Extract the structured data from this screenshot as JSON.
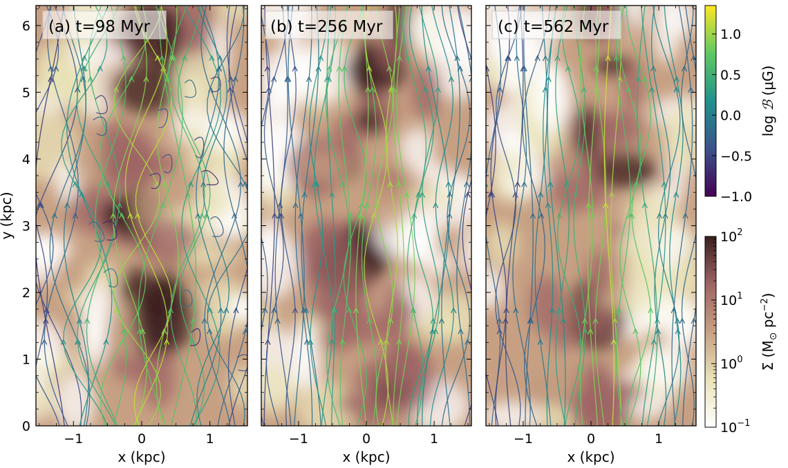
{
  "chart_data": [
    {
      "type": "heatmap",
      "title": "(a) t=98 Myr",
      "xlabel": "x (kpc)",
      "ylabel": "y (kpc)",
      "xlim": [
        -1.55,
        1.55
      ],
      "ylim": [
        0,
        6.3
      ],
      "xticks": [
        {
          "v": -1,
          "label": "−1"
        },
        {
          "v": 0,
          "label": "0"
        },
        {
          "v": 1,
          "label": "1"
        }
      ],
      "yticks": [
        {
          "v": 0,
          "label": "0"
        },
        {
          "v": 1,
          "label": "1"
        },
        {
          "v": 2,
          "label": "2"
        },
        {
          "v": 3,
          "label": "3"
        },
        {
          "v": 4,
          "label": "4"
        },
        {
          "v": 5,
          "label": "5"
        },
        {
          "v": 6,
          "label": "6"
        }
      ],
      "overlay": "magnetic field streamlines",
      "seed": 11
    },
    {
      "type": "heatmap",
      "title": "(b) t=256 Myr",
      "xlabel": "x (kpc)",
      "ylabel": "",
      "xlim": [
        -1.55,
        1.55
      ],
      "ylim": [
        0,
        6.3
      ],
      "xticks": [
        {
          "v": -1,
          "label": "−1"
        },
        {
          "v": 0,
          "label": "0"
        },
        {
          "v": 1,
          "label": "1"
        }
      ],
      "overlay": "magnetic field streamlines",
      "seed": 23
    },
    {
      "type": "heatmap",
      "title": "(c) t=562 Myr",
      "xlabel": "x (kpc)",
      "ylabel": "",
      "xlim": [
        -1.55,
        1.55
      ],
      "ylim": [
        0,
        6.3
      ],
      "xticks": [
        {
          "v": -1,
          "label": "−1"
        },
        {
          "v": 0,
          "label": "0"
        },
        {
          "v": 1,
          "label": "1"
        }
      ],
      "overlay": "magnetic field streamlines",
      "seed": 37
    }
  ],
  "colorbars": {
    "field": {
      "label_text": "log ",
      "label_symbol": "ℬ",
      "label_unit": " (μG)",
      "range": [
        -1.0,
        1.35
      ],
      "ticks": [
        {
          "v": 1.0,
          "label": "1.0"
        },
        {
          "v": 0.5,
          "label": "0.5"
        },
        {
          "v": 0.0,
          "label": "0.0"
        },
        {
          "v": -0.5,
          "label": "−0.5"
        },
        {
          "v": -1.0,
          "label": "−1.0"
        }
      ],
      "colormap": "viridis",
      "colors": [
        "#440154",
        "#3b528b",
        "#21918c",
        "#5ec962",
        "#fde725"
      ]
    },
    "density": {
      "label_prefix": "Σ (M",
      "label_sub": "⊙",
      "label_mid": " pc",
      "label_sup": "−2",
      "label_suffix": ")",
      "scale": "log",
      "range_exp": [
        -1,
        2
      ],
      "ticks": [
        {
          "exp": 2,
          "base": "10",
          "sup": "2"
        },
        {
          "exp": 1,
          "base": "10",
          "sup": "1"
        },
        {
          "exp": 0,
          "base": "10",
          "sup": "0"
        },
        {
          "exp": -1,
          "base": "10",
          "sup": "−1"
        }
      ],
      "colormap": "pink",
      "colors": [
        "#ffffff",
        "#e9e3b8",
        "#c7a083",
        "#9e6464",
        "#3a1e1e"
      ]
    }
  }
}
